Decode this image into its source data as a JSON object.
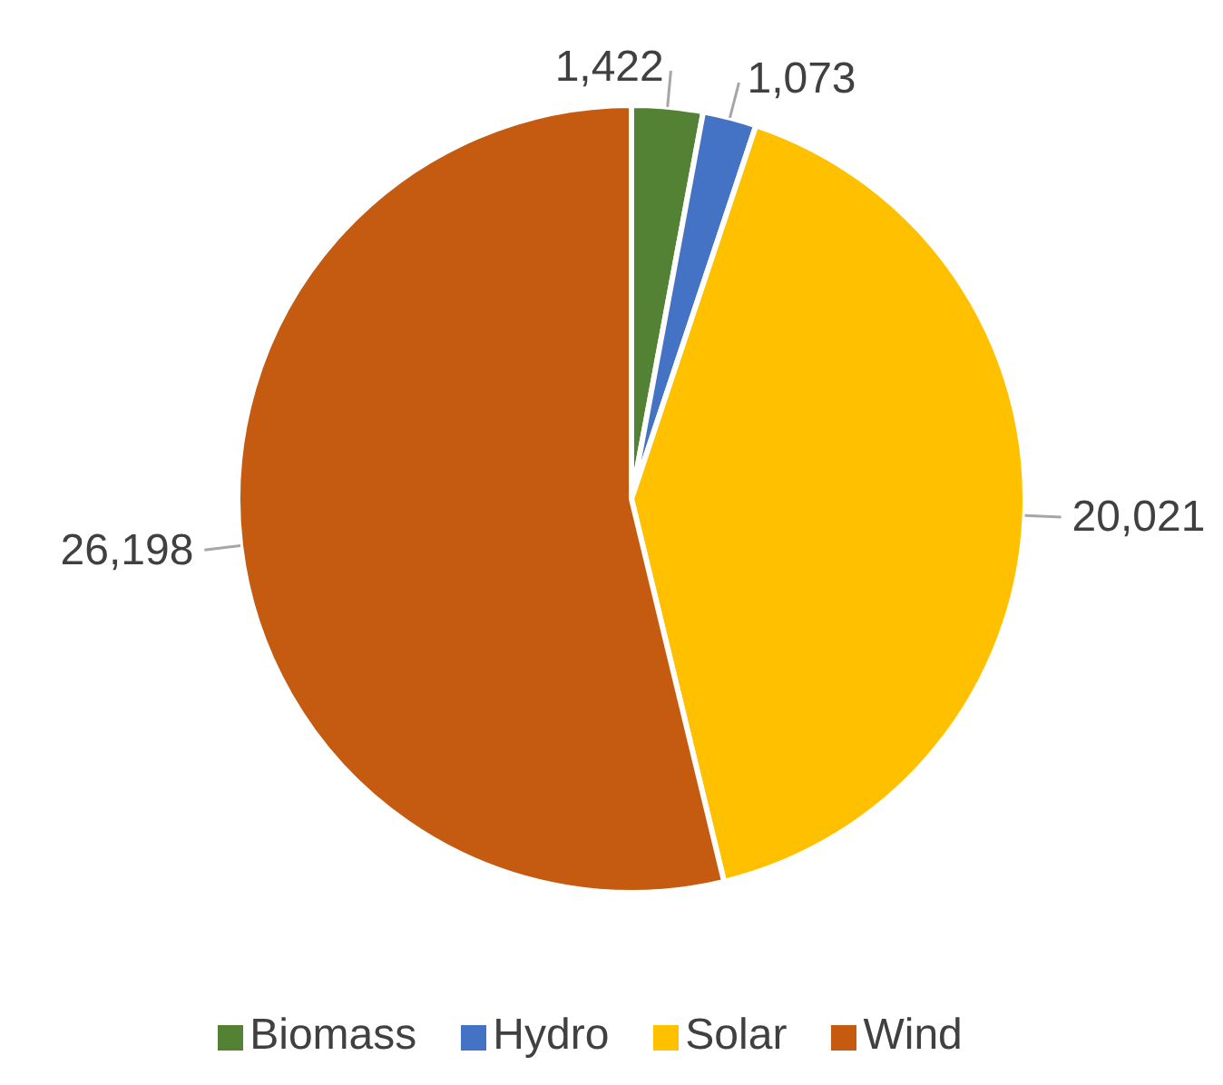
{
  "chart_data": {
    "type": "pie",
    "categories": [
      "Biomass",
      "Hydro",
      "Solar",
      "Wind"
    ],
    "values": [
      1422,
      1073,
      20021,
      26198
    ],
    "value_labels": [
      "1,422",
      "1,073",
      "20,021",
      "26,198"
    ],
    "colors": [
      "#548235",
      "#4472c4",
      "#ffc000",
      "#c55a11"
    ],
    "legend": "bottom"
  }
}
